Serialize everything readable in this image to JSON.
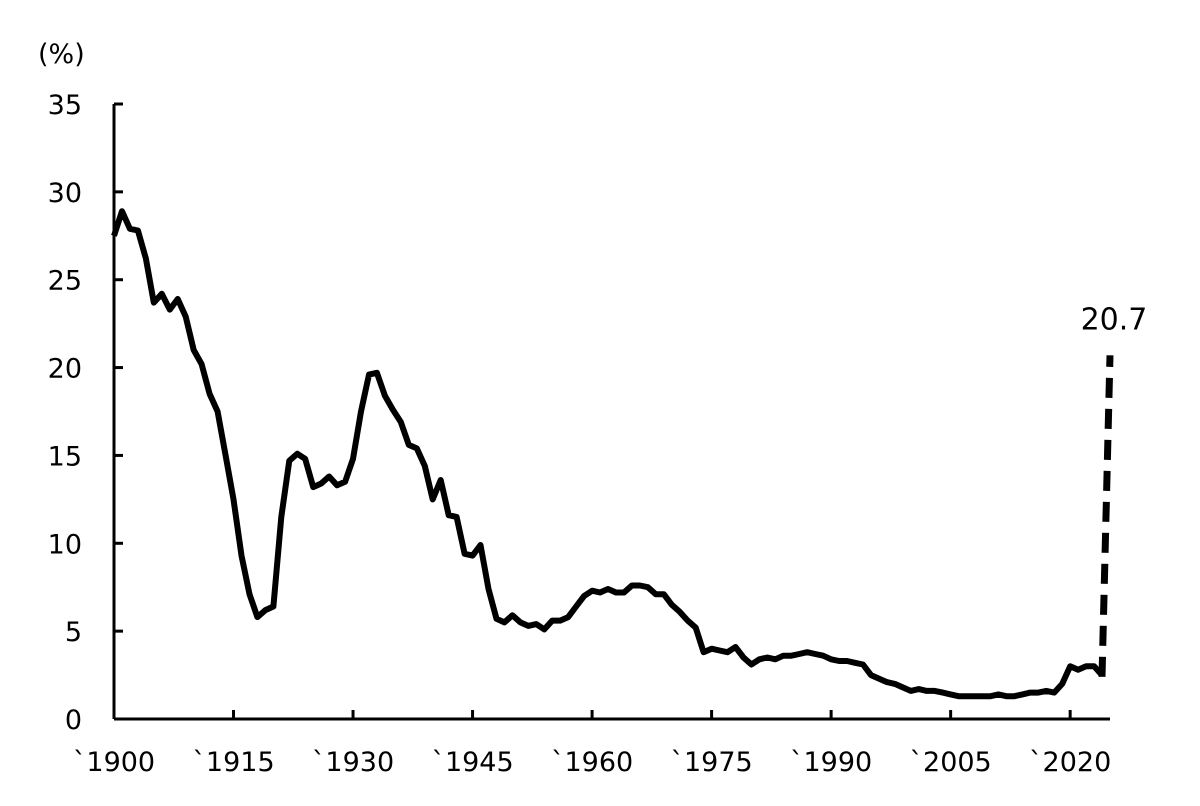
{
  "chart_data": {
    "type": "line",
    "title": "",
    "xlabel": "",
    "ylabel": "(%)",
    "xlim": [
      1900,
      2025
    ],
    "ylim": [
      0,
      35
    ],
    "grid": false,
    "legend": "none",
    "line_color": "#000000",
    "x_tick_labels": [
      {
        "value": 1900,
        "label": "`1900"
      },
      {
        "value": 1915,
        "label": "`1915"
      },
      {
        "value": 1930,
        "label": "`1930"
      },
      {
        "value": 1945,
        "label": "`1945"
      },
      {
        "value": 1960,
        "label": "`1960"
      },
      {
        "value": 1975,
        "label": "`1975"
      },
      {
        "value": 1990,
        "label": "`1990"
      },
      {
        "value": 2005,
        "label": "`2005"
      },
      {
        "value": 2020,
        "label": "`2020"
      }
    ],
    "y_ticks": [
      0,
      5,
      10,
      15,
      20,
      25,
      30,
      35
    ],
    "series": [
      {
        "x": [
          1900,
          1901,
          1902,
          1903,
          1904,
          1905,
          1906,
          1907,
          1908,
          1909,
          1910,
          1911,
          1912,
          1913,
          1914,
          1915,
          1916,
          1917,
          1918,
          1919,
          1920,
          1921,
          1922,
          1923,
          1924,
          1925,
          1926,
          1927,
          1928,
          1929,
          1930,
          1931,
          1932,
          1933,
          1934,
          1935,
          1936,
          1937,
          1938,
          1939,
          1940,
          1941,
          1942,
          1943,
          1944,
          1945,
          1946,
          1947,
          1948,
          1949,
          1950,
          1951,
          1952,
          1953,
          1954,
          1955,
          1956,
          1957,
          1958,
          1959,
          1960,
          1961,
          1962,
          1963,
          1964,
          1965,
          1966,
          1967,
          1968,
          1969,
          1970,
          1971,
          1972,
          1973,
          1974,
          1975,
          1976,
          1977,
          1978,
          1979,
          1980,
          1981,
          1982,
          1983,
          1984,
          1985,
          1986,
          1987,
          1988,
          1989,
          1990,
          1991,
          1992,
          1993,
          1994,
          1995,
          1996,
          1997,
          1998,
          1999,
          2000,
          2001,
          2002,
          2003,
          2004,
          2005,
          2006,
          2007,
          2008,
          2009,
          2010,
          2011,
          2012,
          2013,
          2014,
          2015,
          2016,
          2017,
          2018,
          2019,
          2020,
          2021,
          2022,
          2023,
          2024
        ],
        "values": [
          27.5,
          28.9,
          27.9,
          27.8,
          26.2,
          23.7,
          24.2,
          23.3,
          23.9,
          22.9,
          21.0,
          20.2,
          18.5,
          17.5,
          15.0,
          12.5,
          9.3,
          7.1,
          5.8,
          6.2,
          6.4,
          11.5,
          14.7,
          15.1,
          14.8,
          13.2,
          13.4,
          13.8,
          13.3,
          13.5,
          14.8,
          17.5,
          19.6,
          19.7,
          18.4,
          17.6,
          16.9,
          15.6,
          15.4,
          14.4,
          12.5,
          13.6,
          11.6,
          11.5,
          9.4,
          9.3,
          9.9,
          7.4,
          5.7,
          5.5,
          5.9,
          5.5,
          5.3,
          5.4,
          5.1,
          5.6,
          5.6,
          5.8,
          6.4,
          7.0,
          7.3,
          7.2,
          7.4,
          7.2,
          7.2,
          7.6,
          7.6,
          7.5,
          7.1,
          7.1,
          6.5,
          6.1,
          5.6,
          5.2,
          3.8,
          4.0,
          3.9,
          3.8,
          4.1,
          3.5,
          3.1,
          3.4,
          3.5,
          3.4,
          3.6,
          3.6,
          3.7,
          3.8,
          3.7,
          3.6,
          3.4,
          3.3,
          3.3,
          3.2,
          3.1,
          2.5,
          2.3,
          2.1,
          2.0,
          1.8,
          1.6,
          1.7,
          1.6,
          1.6,
          1.5,
          1.4,
          1.3,
          1.3,
          1.3,
          1.3,
          1.3,
          1.4,
          1.3,
          1.3,
          1.4,
          1.5,
          1.5,
          1.6,
          1.5,
          2.0,
          3.0,
          2.8,
          3.0,
          3.0,
          2.5
        ]
      },
      {
        "style": "dashed",
        "x": [
          2024,
          2025
        ],
        "values": [
          2.4,
          20.7
        ]
      }
    ],
    "annotations": [
      {
        "x": 2025,
        "y": 20.7,
        "text": "20.7"
      }
    ]
  }
}
